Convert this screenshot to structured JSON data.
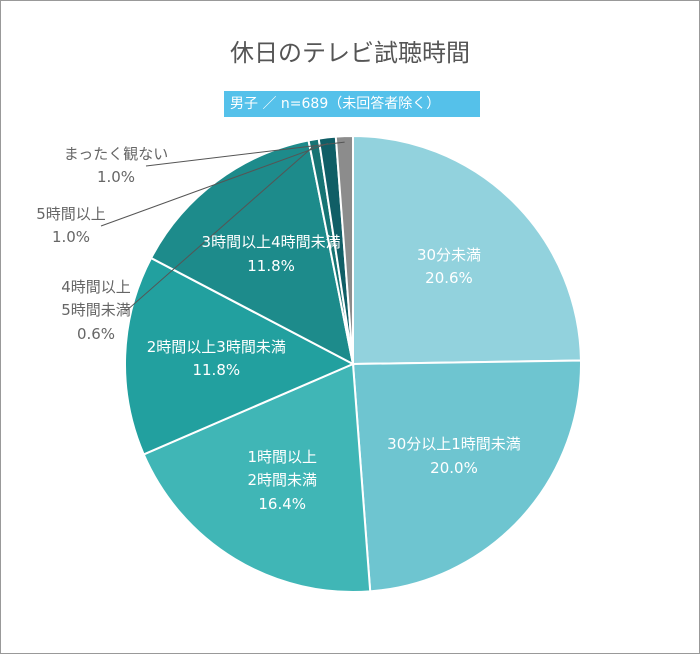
{
  "chart_data": {
    "type": "pie",
    "title": "休日のテレビ試聴時間",
    "subtitle": "男子 ／ n=689（未回答者除く）",
    "categories": [
      "30分未満",
      "30分以上1時間未満",
      "1時間以上\n2時間未満",
      "2時間以上3時間未満",
      "3時間以上4時間未満",
      "4時間以上\n5時間未満",
      "5時間以上",
      "まったく観ない"
    ],
    "values": [
      20.6,
      20.0,
      16.4,
      11.8,
      11.8,
      0.6,
      1.0,
      1.0
    ],
    "value_labels": [
      "20.6%",
      "20.0%",
      "16.4%",
      "11.8%",
      "11.8%",
      "0.6%",
      "1.0%",
      "1.0%"
    ],
    "colors": [
      "#92d2dd",
      "#6ec5d0",
      "#40b6b6",
      "#22a09f",
      "#1d8b8b",
      "#177474",
      "#105e66",
      "#8c8c8c"
    ]
  }
}
